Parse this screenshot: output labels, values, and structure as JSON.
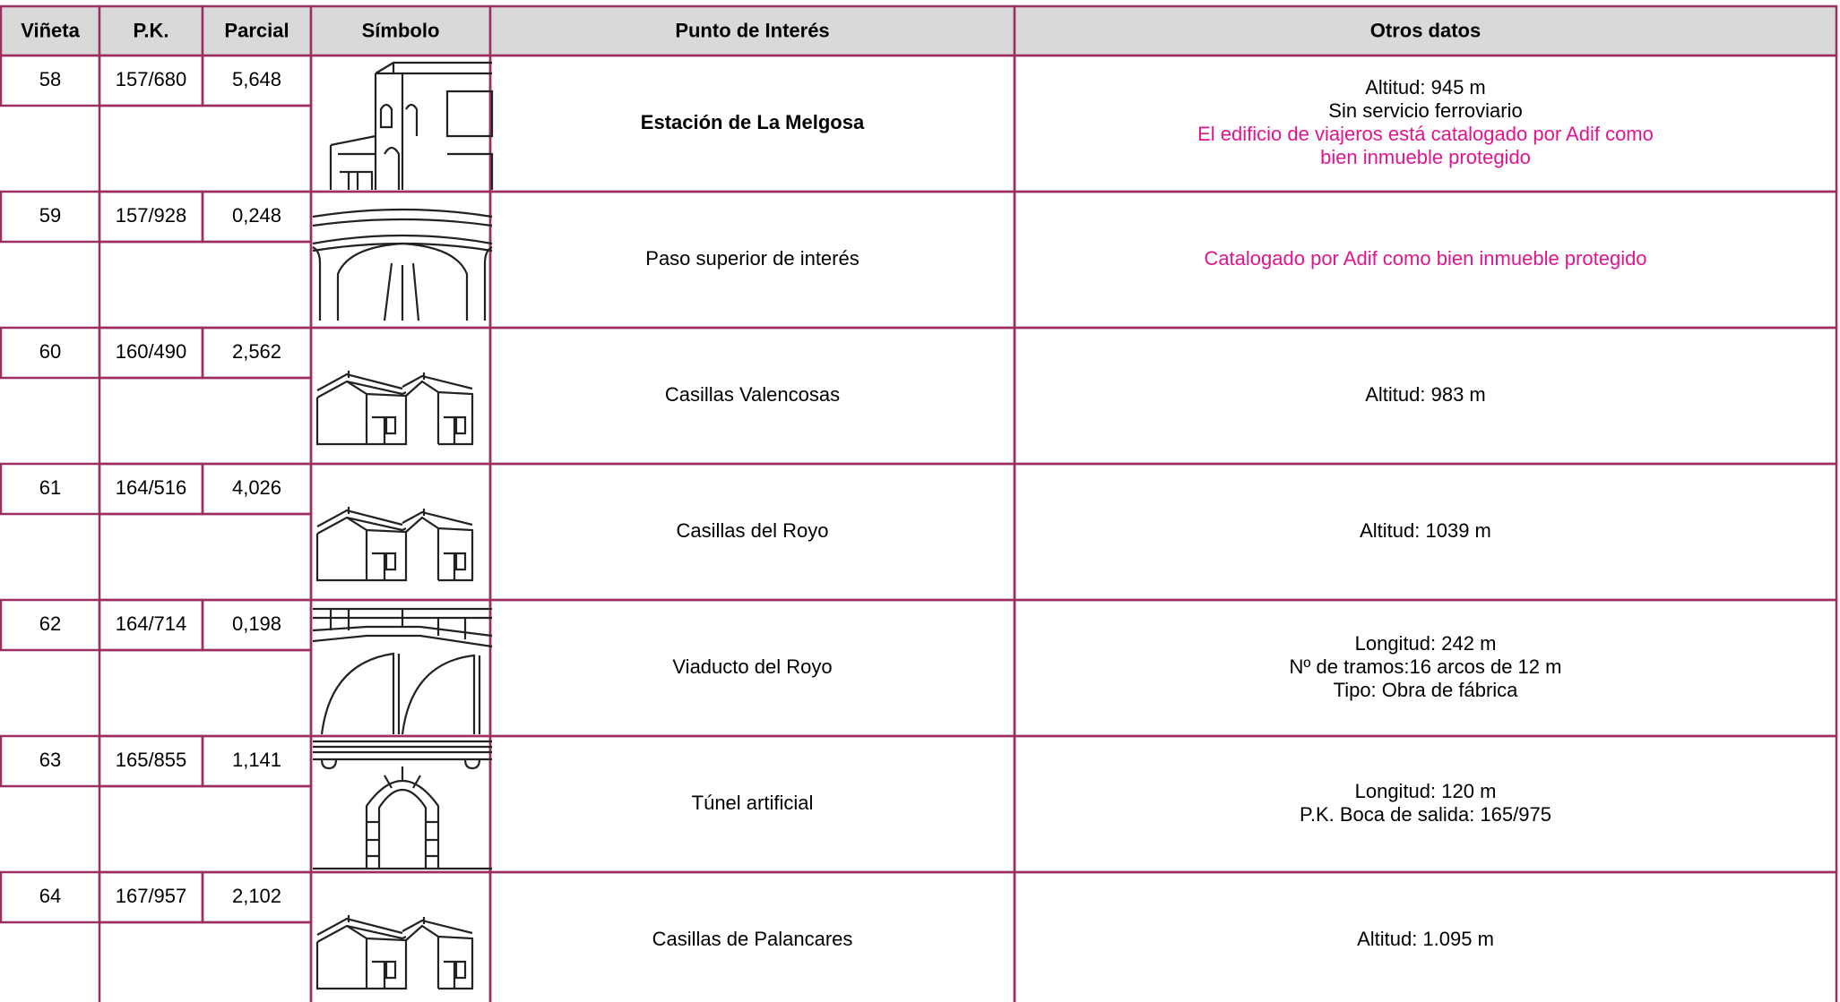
{
  "header": [
    "Viñeta",
    "P.K.",
    "Parcial",
    "Símbolo",
    "Punto de Interés",
    "Otros datos"
  ],
  "rows": [
    {
      "vineta": "58",
      "pk": "157/680",
      "parcial": "5,648",
      "punto": "Estación de La Melgosa",
      "otros": [
        "Altitud: 945 m",
        "Sin servicio ferroviario"
      ],
      "notas": [
        "El edificio de viajeros está catalogado por Adif como",
        "bien inmueble protegido"
      ]
    },
    {
      "vineta": "59",
      "pk": "157/928",
      "parcial": "0,248",
      "punto": "Paso superior de interés",
      "otros": [],
      "notas": [
        "Catalogado por Adif como bien inmueble protegido"
      ]
    },
    {
      "vineta": "60",
      "pk": "160/490",
      "parcial": "2,562",
      "punto": "Casillas Valencosas",
      "otros": [
        "Altitud: 983 m"
      ],
      "notas": []
    },
    {
      "vineta": "61",
      "pk": "164/516",
      "parcial": "4,026",
      "punto": "Casillas del Royo",
      "otros": [
        "Altitud: 1039 m"
      ],
      "notas": []
    },
    {
      "vineta": "62",
      "pk": "164/714",
      "parcial": "0,198",
      "punto": "Viaducto del Royo",
      "otros": [
        "Longitud: 242 m",
        "Nº de tramos:16 arcos de 12 m",
        "Tipo: Obra de fábrica"
      ],
      "notas": []
    },
    {
      "vineta": "63",
      "pk": "165/855",
      "parcial": "1,141",
      "punto": "Túnel artificial",
      "otros": [
        "Longitud: 120 m",
        "P.K. Boca de salida: 165/975"
      ],
      "notas": []
    },
    {
      "vineta": "64",
      "pk": "167/957",
      "parcial": "2,102",
      "punto": "Casillas de Palancares",
      "otros": [
        "Altitud: 1.095 m"
      ],
      "notas": []
    }
  ]
}
